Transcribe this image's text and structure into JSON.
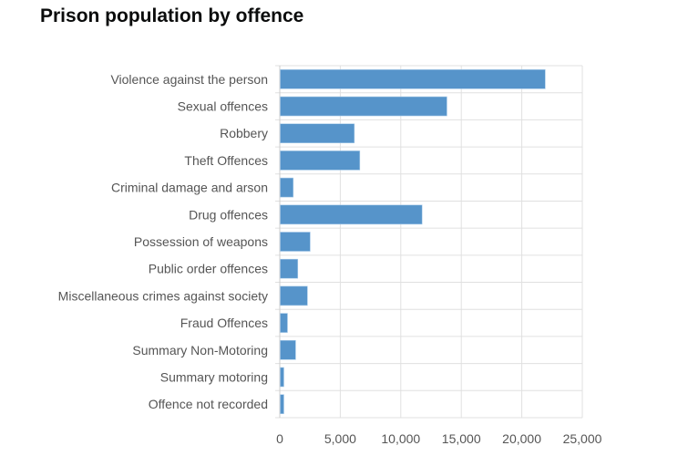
{
  "chart_data": {
    "type": "bar",
    "orientation": "horizontal",
    "title": "Prison population by offence",
    "categories": [
      "Violence against the person",
      "Sexual offences",
      "Robbery",
      "Theft Offences",
      "Criminal damage and arson",
      "Drug offences",
      "Possession of weapons",
      "Public order offences",
      "Miscellaneous crimes against society",
      "Fraud Offences",
      "Summary Non-Motoring",
      "Summary motoring",
      "Offence not recorded"
    ],
    "values": [
      21900,
      13775,
      6125,
      6575,
      1075,
      11725,
      2475,
      1450,
      2250,
      600,
      1275,
      300,
      300
    ],
    "xlim": [
      0,
      25000
    ],
    "xticks": [
      "0",
      "5,000",
      "10,000",
      "15,000",
      "20,000",
      "25,000"
    ],
    "grid": true,
    "colors": {
      "bar": "#5694ca",
      "grid": "#e0e0e0"
    }
  }
}
